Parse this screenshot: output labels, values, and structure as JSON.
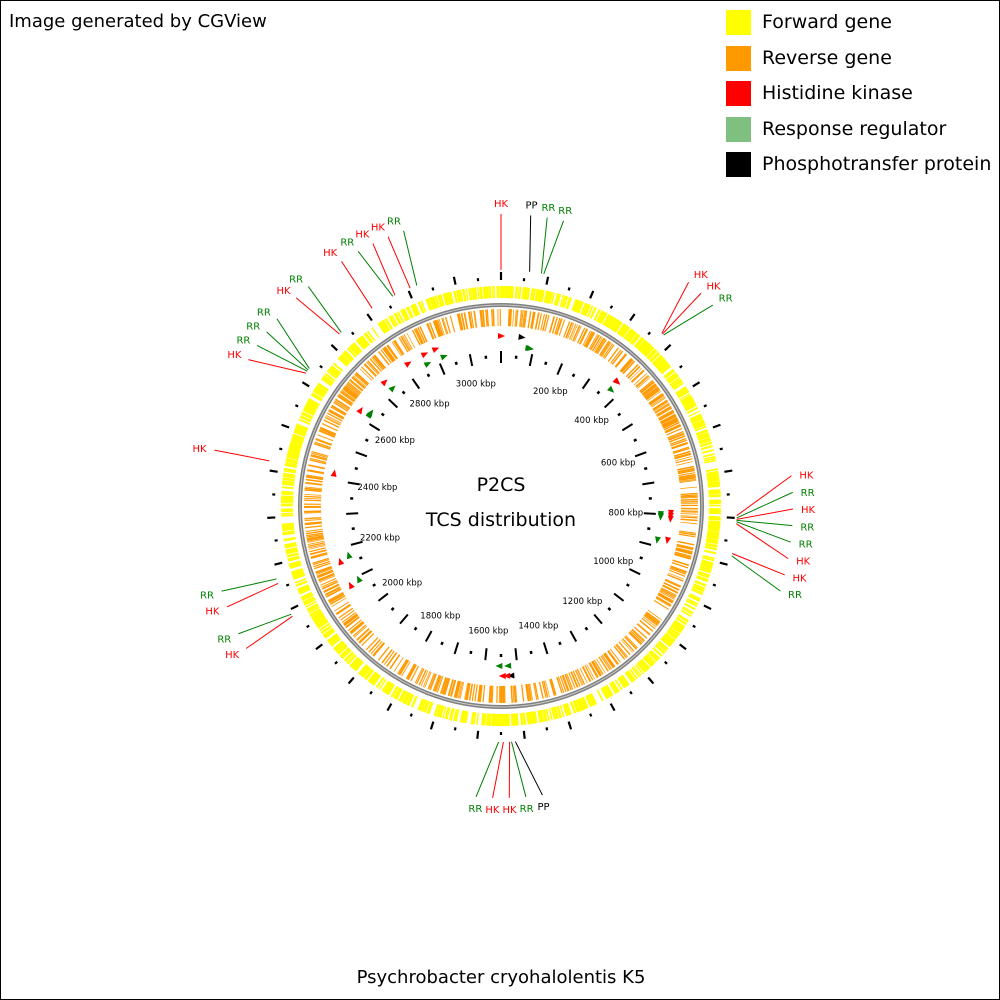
{
  "header": {
    "credit": "Image generated by CGView"
  },
  "legend": [
    {
      "label": "Forward gene",
      "color": "#ffff00"
    },
    {
      "label": "Reverse gene",
      "color": "#ff9900"
    },
    {
      "label": "Histidine kinase",
      "color": "#ff0000"
    },
    {
      "label": "Response regulator",
      "color": "#7fbf7f"
    },
    {
      "label": "Phosphotransfer protein",
      "color": "#000000"
    }
  ],
  "map": {
    "center_title": "P2CS",
    "center_subtitle": "TCS distribution",
    "genome_length_kbp": 3100,
    "scale_labels": [
      "200 kbp",
      "400 kbp",
      "600 kbp",
      "800 kbp",
      "1000 kbp",
      "1200 kbp",
      "1400 kbp",
      "1600 kbp",
      "1800 kbp",
      "2000 kbp",
      "2200 kbp",
      "2400 kbp",
      "2600 kbp",
      "2800 kbp",
      "3000 kbp"
    ],
    "colors": {
      "HK": "#ff0000",
      "RR": "#008000",
      "PP": "#000000",
      "backbone": "#808080"
    }
  },
  "chart_data": {
    "type": "circular_genome_map",
    "title": "P2CS",
    "subtitle": "TCS distribution",
    "organism": "Psychrobacter cryohalolentis K5",
    "genome_length_kbp": 3100,
    "tracks": [
      "Forward gene",
      "Reverse gene",
      "Histidine kinase",
      "Response regulator",
      "Phosphotransfer protein"
    ],
    "features": [
      {
        "label": "HK",
        "position_kbp": 0
      },
      {
        "label": "PP",
        "position_kbp": 60
      },
      {
        "label": "RR",
        "position_kbp": 85
      },
      {
        "label": "RR",
        "position_kbp": 90
      },
      {
        "label": "HK",
        "position_kbp": 370
      },
      {
        "label": "HK",
        "position_kbp": 372
      },
      {
        "label": "RR",
        "position_kbp": 375
      },
      {
        "label": "HK",
        "position_kbp": 795
      },
      {
        "label": "RR",
        "position_kbp": 800
      },
      {
        "label": "HK",
        "position_kbp": 803
      },
      {
        "label": "RR",
        "position_kbp": 805
      },
      {
        "label": "RR",
        "position_kbp": 808
      },
      {
        "label": "HK",
        "position_kbp": 812
      },
      {
        "label": "HK",
        "position_kbp": 875
      },
      {
        "label": "RR",
        "position_kbp": 880
      },
      {
        "label": "PP",
        "position_kbp": 1520
      },
      {
        "label": "RR",
        "position_kbp": 1528
      },
      {
        "label": "HK",
        "position_kbp": 1532
      },
      {
        "label": "HK",
        "position_kbp": 1545
      },
      {
        "label": "RR",
        "position_kbp": 1555
      },
      {
        "label": "HK",
        "position_kbp": 2085
      },
      {
        "label": "RR",
        "position_kbp": 2090
      },
      {
        "label": "HK",
        "position_kbp": 2160
      },
      {
        "label": "RR",
        "position_kbp": 2170
      },
      {
        "label": "HK",
        "position_kbp": 2420
      },
      {
        "label": "HK",
        "position_kbp": 2620
      },
      {
        "label": "RR",
        "position_kbp": 2625
      },
      {
        "label": "RR",
        "position_kbp": 2628
      },
      {
        "label": "RR",
        "position_kbp": 2632
      },
      {
        "label": "HK",
        "position_kbp": 2728
      },
      {
        "label": "RR",
        "position_kbp": 2733
      },
      {
        "label": "HK",
        "position_kbp": 2815
      },
      {
        "label": "RR",
        "position_kbp": 2865
      },
      {
        "label": "HK",
        "position_kbp": 2870
      },
      {
        "label": "HK",
        "position_kbp": 2905
      },
      {
        "label": "RR",
        "position_kbp": 2920
      }
    ]
  },
  "footer": {
    "organism": "Psychrobacter cryohalolentis K5"
  }
}
